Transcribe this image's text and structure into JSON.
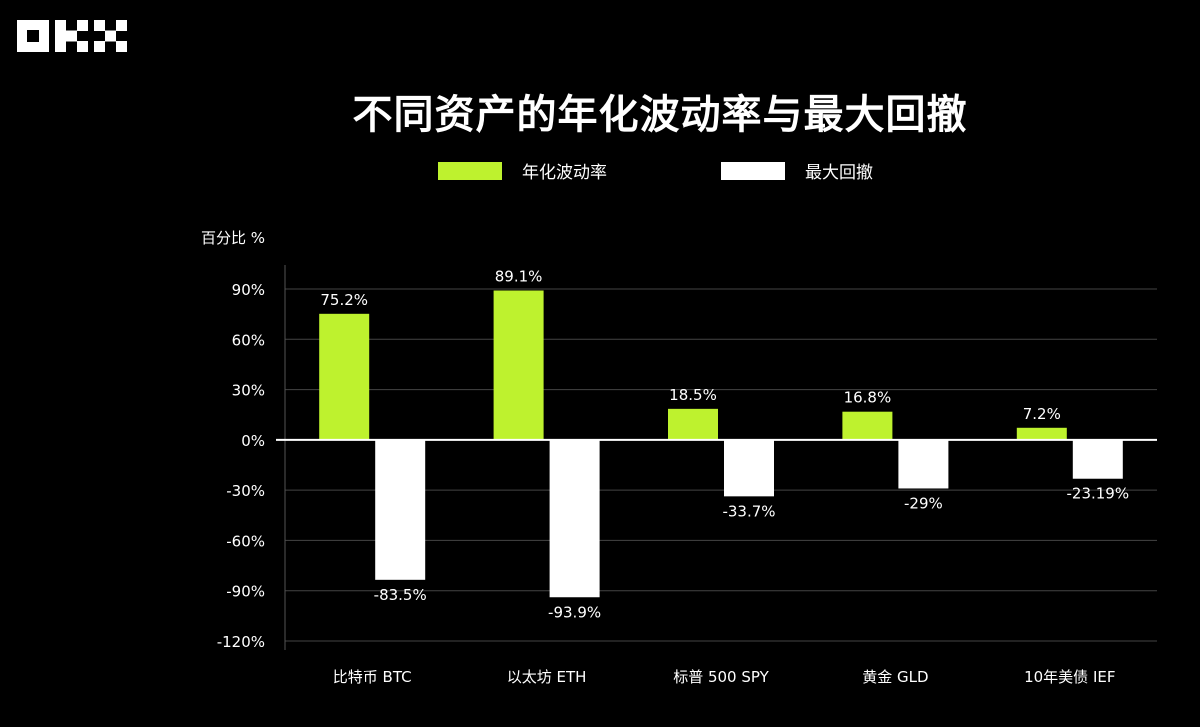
{
  "logo": {
    "text": "OKX"
  },
  "title": "不同资产的年化波动率与最大回撤",
  "chart_data": {
    "type": "bar",
    "title": "不同资产的年化波动率与最大回撤",
    "ylabel": "百分比 %",
    "xlabel": "",
    "categories": [
      "比特币 BTC",
      "以太坊 ETH",
      "标普 500 SPY",
      "黄金 GLD",
      "10年美债 IEF"
    ],
    "series": [
      {
        "name": "年化波动率",
        "color": "#BEF22E",
        "values": [
          75.2,
          89.1,
          18.5,
          16.8,
          7.2
        ],
        "labels": [
          "75.2%",
          "89.1%",
          "18.5%",
          "16.8%",
          "7.2%"
        ]
      },
      {
        "name": "最大回撤",
        "color": "#FFFFFF",
        "values": [
          -83.5,
          -93.9,
          -33.7,
          -29,
          -23.19
        ],
        "labels": [
          "-83.5%",
          "-93.9%",
          "-33.7%",
          "-29%",
          "-23.19%"
        ]
      }
    ],
    "ylim": [
      -120,
      90
    ],
    "yticks": [
      90,
      60,
      30,
      0,
      -30,
      -60,
      -90,
      -120
    ],
    "ytick_labels": [
      "90%",
      "60%",
      "30%",
      "0%",
      "-30%",
      "-60%",
      "-90%",
      "-120%"
    ],
    "grid": true,
    "legend": "top-center",
    "background": "#000000"
  }
}
